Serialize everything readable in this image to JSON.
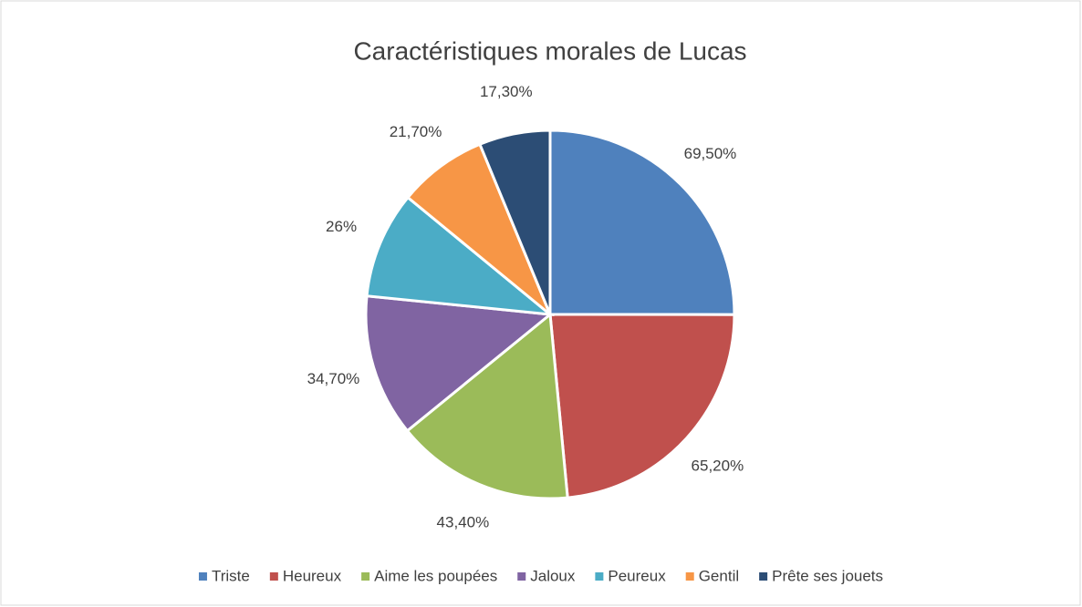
{
  "chart_data": {
    "type": "pie",
    "title": "Caractéristiques morales de Lucas",
    "categories": [
      "Triste",
      "Heureux",
      "Aime les poupées",
      "Jaloux",
      "Peureux",
      "Gentil",
      "Prête ses jouets"
    ],
    "values": [
      69.5,
      65.2,
      43.4,
      34.7,
      26,
      21.7,
      17.3
    ],
    "value_labels": [
      "69,50%",
      "65,20%",
      "43,40%",
      "34,70%",
      "26%",
      "21,70%",
      "17,30%"
    ],
    "colors": [
      "#4f81bd",
      "#c0504d",
      "#9bbb59",
      "#8064a2",
      "#4bacc6",
      "#f79646",
      "#2c4d75"
    ],
    "legend": "bottom"
  }
}
